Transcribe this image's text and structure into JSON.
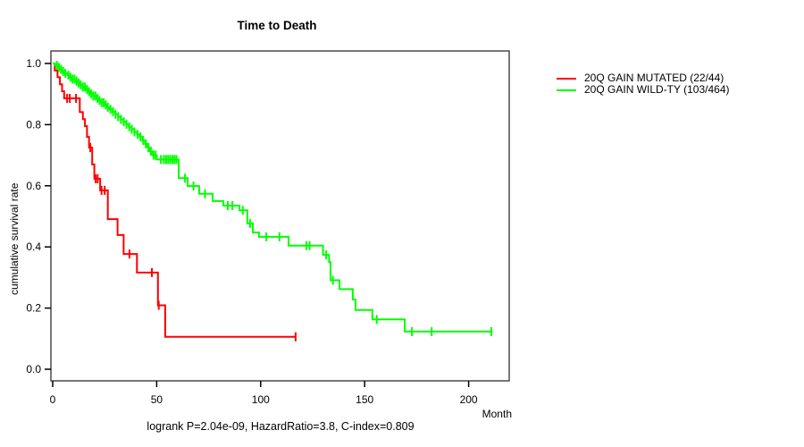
{
  "chart_data": {
    "type": "line",
    "subtype": "kaplan-meier-step-function",
    "title": "Time to Death",
    "xlabel": "Month",
    "ylabel": "cumulative survival rate",
    "annotation": "logrank P=2.04e-09, HazardRatio=3.8, C-index=0.809",
    "xlim": [
      0,
      220
    ],
    "ylim": [
      0,
      1
    ],
    "grid": false,
    "legend_position": "right-outside",
    "xticks": [
      {
        "v": 0,
        "label": "0"
      },
      {
        "v": 50,
        "label": "50"
      },
      {
        "v": 100,
        "label": "100"
      },
      {
        "v": 150,
        "label": "150"
      },
      {
        "v": 200,
        "label": "200"
      }
    ],
    "yticks": [
      {
        "v": 1.0,
        "label": "1.0"
      },
      {
        "v": 0.8,
        "label": "0.8"
      },
      {
        "v": 0.6,
        "label": "0.6"
      },
      {
        "v": 0.4,
        "label": "0.4"
      },
      {
        "v": 0.2,
        "label": "0.2"
      },
      {
        "v": 0.0,
        "label": "0.0"
      }
    ],
    "series": [
      {
        "name": "20Q GAIN MUTATED (22/44)",
        "color": "#ff0000",
        "end_month": 116.8,
        "steps": [
          [
            0,
            1.0
          ],
          [
            1,
            0.977
          ],
          [
            2.3,
            0.955
          ],
          [
            3.5,
            0.932
          ],
          [
            4.5,
            0.909
          ],
          [
            5.5,
            0.886
          ],
          [
            13,
            0.841
          ],
          [
            14.5,
            0.818
          ],
          [
            15.5,
            0.795
          ],
          [
            16.5,
            0.76
          ],
          [
            17.5,
            0.725
          ],
          [
            19,
            0.67
          ],
          [
            20,
            0.623
          ],
          [
            22.8,
            0.585
          ],
          [
            26.5,
            0.491
          ],
          [
            31.2,
            0.439
          ],
          [
            34.1,
            0.377
          ],
          [
            40.5,
            0.316
          ],
          [
            50.6,
            0.209
          ],
          [
            54.1,
            0.106
          ]
        ],
        "censor_times": [
          6.9,
          8.2,
          11.2,
          18.1,
          20.6,
          21.6,
          23.5,
          25,
          36.9,
          47.7,
          51,
          116.8
        ]
      },
      {
        "name": "20Q GAIN WILD-TY (103/464)",
        "color": "#00ff00",
        "end_month": 210.9,
        "steps": [
          [
            0,
            1.0
          ],
          [
            1,
            0.994
          ],
          [
            2.2,
            0.987
          ],
          [
            3.4,
            0.981
          ],
          [
            4.6,
            0.974
          ],
          [
            5.8,
            0.968
          ],
          [
            7,
            0.962
          ],
          [
            8.2,
            0.955
          ],
          [
            9.4,
            0.949
          ],
          [
            10.6,
            0.942
          ],
          [
            11.8,
            0.936
          ],
          [
            13,
            0.93
          ],
          [
            14.3,
            0.923
          ],
          [
            15.6,
            0.915
          ],
          [
            16.9,
            0.908
          ],
          [
            18.2,
            0.901
          ],
          [
            19.5,
            0.894
          ],
          [
            20.8,
            0.886
          ],
          [
            22.1,
            0.879
          ],
          [
            23.4,
            0.872
          ],
          [
            24.7,
            0.865
          ],
          [
            26,
            0.857
          ],
          [
            27.3,
            0.85
          ],
          [
            28.8,
            0.842
          ],
          [
            30.1,
            0.834
          ],
          [
            31.4,
            0.826
          ],
          [
            32.7,
            0.817
          ],
          [
            34,
            0.809
          ],
          [
            35.3,
            0.801
          ],
          [
            36.6,
            0.793
          ],
          [
            37.9,
            0.785
          ],
          [
            39.2,
            0.776
          ],
          [
            40.5,
            0.768
          ],
          [
            41.8,
            0.76
          ],
          [
            43.2,
            0.748
          ],
          [
            44.4,
            0.737
          ],
          [
            45.6,
            0.725
          ],
          [
            46.8,
            0.713
          ],
          [
            48,
            0.7
          ],
          [
            50,
            0.686
          ],
          [
            60.6,
            0.625
          ],
          [
            64.9,
            0.599
          ],
          [
            70.4,
            0.574
          ],
          [
            76.9,
            0.55
          ],
          [
            82.1,
            0.535
          ],
          [
            89.8,
            0.52
          ],
          [
            93.6,
            0.477
          ],
          [
            96.2,
            0.447
          ],
          [
            99.2,
            0.433
          ],
          [
            113.4,
            0.404
          ],
          [
            130,
            0.374
          ],
          [
            132.9,
            0.35
          ],
          [
            133.6,
            0.291
          ],
          [
            137.9,
            0.262
          ],
          [
            144.3,
            0.228
          ],
          [
            145.6,
            0.194
          ],
          [
            153.7,
            0.163
          ],
          [
            169.3,
            0.123
          ]
        ],
        "censor_times": [
          2,
          3,
          4,
          5,
          6,
          7.5,
          8.5,
          9.5,
          10.5,
          11.5,
          12.5,
          13.5,
          14.5,
          15.5,
          16.5,
          17.5,
          18.5,
          19.5,
          20.5,
          21.5,
          22.5,
          23.5,
          24.5,
          25.5,
          26.5,
          27.8,
          29,
          30.2,
          31.5,
          32.8,
          34.2,
          35.5,
          36.8,
          38,
          39.3,
          40.8,
          42.2,
          43.5,
          44.8,
          46,
          47.2,
          48.5,
          49.5,
          52,
          53.5,
          54.5,
          55.5,
          56.5,
          57.5,
          58.5,
          59.5,
          63.6,
          67.7,
          73.2,
          84.2,
          86.4,
          91.4,
          94.9,
          102.7,
          109,
          122,
          123.5,
          131.5,
          134.7,
          155.8,
          172.7,
          182.2,
          210.9
        ]
      }
    ]
  },
  "colors": {
    "box": "#4a4a4a",
    "axis": "#000000",
    "text": "#000000",
    "background": "#ffffff",
    "series_red": "#ff0000",
    "series_green": "#00ff00"
  }
}
